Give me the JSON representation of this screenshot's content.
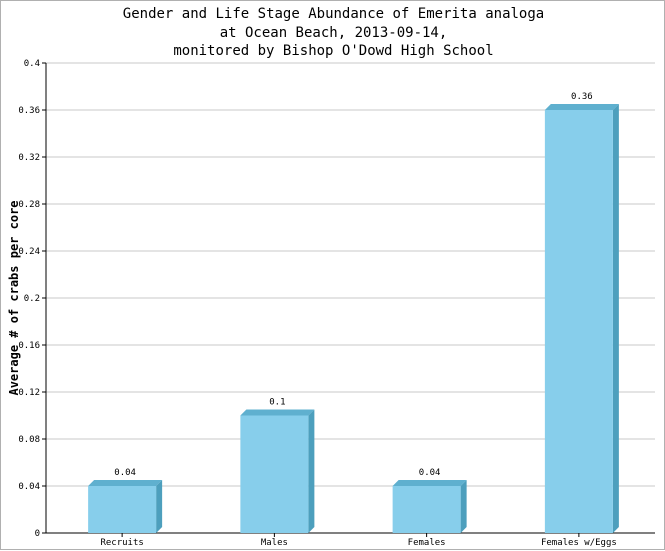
{
  "chart_data": {
    "type": "bar",
    "title_lines": [
      "Gender and Life Stage Abundance of Emerita analoga",
      "at Ocean Beach, 2013-09-14,",
      "monitored by Bishop O'Dowd High School"
    ],
    "xlabel": "",
    "ylabel": "Average # of crabs per core",
    "categories": [
      "Recruits",
      "Males",
      "Females",
      "Females w/Eggs"
    ],
    "values": [
      0.04,
      0.1,
      0.04,
      0.36
    ],
    "value_labels": [
      "0.04",
      "0.1",
      "0.04",
      "0.36"
    ],
    "ylim": [
      0,
      0.4
    ],
    "yticks": [
      "0",
      "0.04",
      "0.08",
      "0.12",
      "0.16",
      "0.2",
      "0.24",
      "0.28",
      "0.32",
      "0.36",
      "0.4"
    ],
    "grid": true,
    "legend": "none",
    "colors": {
      "bar_front": "#87ceeb",
      "bar_side": "#4d9fbd",
      "bar_top": "#5fb0cf",
      "grid": "#c8c8c8"
    }
  }
}
